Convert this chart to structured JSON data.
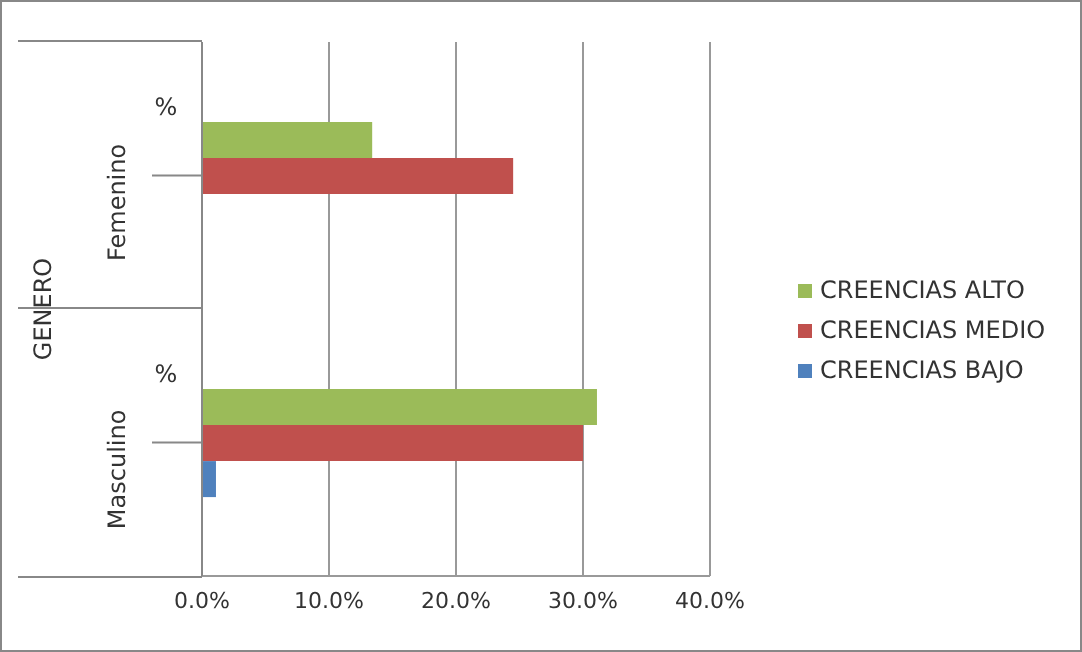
{
  "chart_data": {
    "type": "bar",
    "orientation": "horizontal",
    "ylabel": "GENERO",
    "categories": [
      "%",
      "%"
    ],
    "annotations": [
      "Femenino",
      "Masculino"
    ],
    "series": [
      {
        "name": "CREENCIAS ALTO",
        "color": "#9bbb59",
        "values": [
          13.4,
          31.1
        ]
      },
      {
        "name": "CREENCIAS MEDIO",
        "color": "#c0504d",
        "values": [
          24.5,
          30.0
        ]
      },
      {
        "name": "CREENCIAS BAJO",
        "color": "#4f81bd",
        "values": [
          null,
          1.1
        ]
      }
    ],
    "xlim": [
      0,
      40
    ],
    "xticks": [
      {
        "value": 0,
        "label": "0.0%"
      },
      {
        "value": 10,
        "label": "10.0%"
      },
      {
        "value": 20,
        "label": "20.0%"
      },
      {
        "value": 30,
        "label": "30.0%"
      },
      {
        "value": 40,
        "label": "40.0%"
      }
    ],
    "grid": "x",
    "legend": "right"
  }
}
